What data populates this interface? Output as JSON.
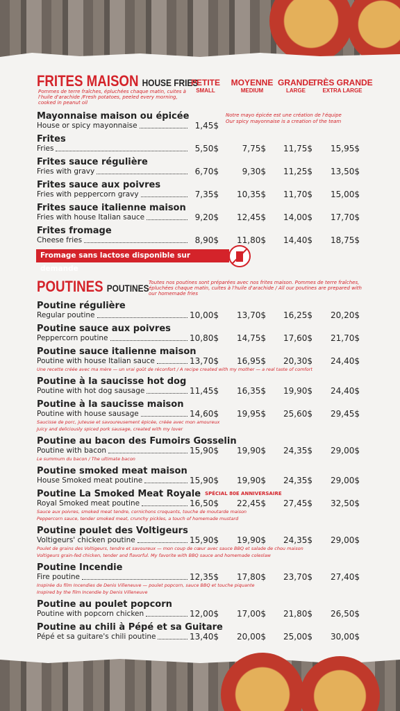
{
  "frites": {
    "title": "FRITES MAISON",
    "subtitle": "HOUSE FRIES",
    "description": "Pommes de terre fraîches, épluchées chaque matin, cuites à l'huile d'arachide /Fresh potatoes, peeled every morning, cooked in peanut oil",
    "sizes": [
      {
        "fr": "PETITE",
        "en": "SMALL"
      },
      {
        "fr": "MOYENNE",
        "en": "MEDIUM"
      },
      {
        "fr": "GRANDE",
        "en": "LARGE"
      },
      {
        "fr": "TRÈS GRANDE",
        "en": "EXTRA LARGE"
      }
    ],
    "items": [
      {
        "name": "Mayonnaise maison ou épicée",
        "sub": "House or spicy mayonnaise",
        "prices": [
          "1,45$"
        ],
        "side_note": [
          "Notre mayo épicée est une création de l'équipe",
          "Our spicy mayonnaise is a creation of the team"
        ]
      },
      {
        "name": "Frites",
        "sub": "Fries",
        "prices": [
          "5,50$",
          "7,75$",
          "11,75$",
          "15,95$"
        ]
      },
      {
        "name": "Frites sauce régulière",
        "sub": "Fries with gravy",
        "prices": [
          "6,70$",
          "9,30$",
          "11,25$",
          "13,50$"
        ]
      },
      {
        "name": "Frites sauce aux poivres",
        "sub": "Fries with peppercorn gravy",
        "prices": [
          "7,35$",
          "10,35$",
          "11,70$",
          "15,00$"
        ]
      },
      {
        "name": "Frites sauce italienne maison",
        "sub": "Fries with house Italian sauce",
        "prices": [
          "9,20$",
          "12,45$",
          "14,00$",
          "17,70$"
        ]
      },
      {
        "name": "Frites fromage",
        "sub": "Cheese fries",
        "prices": [
          "8,90$",
          "11,80$",
          "14,40$",
          "18,75$"
        ]
      }
    ],
    "banner": "Fromage sans lactose disponible sur demande"
  },
  "poutines": {
    "title": "POUTINES",
    "subtitle": "POUTINES",
    "description": "Toutes nos poutines sont préparées avec nos frites maison. Pommes de terre fraîches, épluchées chaque matin, cuites à l'huile d'arachide / All our poutines are prepared with our homemade fries",
    "items": [
      {
        "name": "Poutine régulière",
        "sub": "Regular poutine",
        "prices": [
          "10,00$",
          "13,70$",
          "16,25$",
          "20,20$"
        ]
      },
      {
        "name": "Poutine sauce aux poivres",
        "sub": "Peppercorn poutine",
        "prices": [
          "10,80$",
          "14,75$",
          "17,60$",
          "21,70$"
        ]
      },
      {
        "name": "Poutine sauce italienne maison",
        "sub": "Poutine with house Italian sauce",
        "prices": [
          "13,70$",
          "16,95$",
          "20,30$",
          "24,40$"
        ],
        "notes": [
          "Une recette créée avec ma mère — un vrai goût de réconfort / A recipe created with my mother — a real taste of comfort"
        ]
      },
      {
        "name": "Poutine à la saucisse hot dog",
        "sub": "Poutine with hot dog sausage",
        "prices": [
          "11,45$",
          "16,35$",
          "19,90$",
          "24,40$"
        ]
      },
      {
        "name": "Poutine à la saucisse maison",
        "sub": "Poutine with house sausage",
        "prices": [
          "14,60$",
          "19,95$",
          "25,60$",
          "29,45$"
        ],
        "notes": [
          "Saucisse de porc, juteuse et savoureusement épicée, créée avec mon amoureux",
          "Juicy and deliciously spiced pork sausage, created with my lover"
        ]
      },
      {
        "name": "Poutine au bacon des Fumoirs Gosselin",
        "sub": "Poutine with bacon",
        "prices": [
          "15,90$",
          "19,90$",
          "24,35$",
          "29,00$"
        ],
        "notes": [
          "Le summum du bacon / The ultimate bacon"
        ]
      },
      {
        "name": "Poutine smoked meat maison",
        "sub": "House Smoked meat poutine",
        "prices": [
          "15,90$",
          "19,90$",
          "24,35$",
          "29,00$"
        ]
      },
      {
        "name": "Poutine La Smoked Meat Royale",
        "tag": "SPÉCIAL 80E ANNIVERSAIRE",
        "sub": "Royal Smoked meat poutine",
        "prices": [
          "16,50$",
          "22,45$",
          "27,45$",
          "32,50$"
        ],
        "notes": [
          "Sauce aux poivres, smoked meat tendre, cornichons croquants, touche de moutarde maison",
          "Peppercorn sauce, tender smoked meat, crunchy pickles, a touch of homemade mustard"
        ]
      },
      {
        "name": "Poutine poulet des Voltigeurs",
        "sub": "Voltigeurs' chicken poutine",
        "prices": [
          "15,90$",
          "19,90$",
          "24,35$",
          "29,00$"
        ],
        "notes": [
          "Poulet de grains des Voltigeurs, tendre et savoureux — mon coup de cœur avec sauce BBQ et salade de chou maison",
          "Voltigeurs grain-fed chicken, tender and flavorful. My favorite with BBQ sauce and homemade coleslaw"
        ]
      },
      {
        "name": "Poutine Incendie",
        "sub": "Fire poutine",
        "prices": [
          "12,35$",
          "17,80$",
          "23,70$",
          "27,40$"
        ],
        "notes": [
          "Inspirée du film Incendies de Denis Villeneuve — poulet popcorn, sauce BBQ et touche piquante",
          "Inspired by the film Incendie by Denis Villeneuve"
        ]
      },
      {
        "name": "Poutine au poulet popcorn",
        "sub": "Poutine with popcorn chicken",
        "prices": [
          "12,00$",
          "17,00$",
          "21,80$",
          "26,50$"
        ]
      },
      {
        "name": "Poutine au chili à Pépé et sa Guitare",
        "sub": "Pépé et sa guitare's chili poutine",
        "prices": [
          "13,40$",
          "20,00$",
          "25,00$",
          "30,00$"
        ]
      }
    ]
  }
}
